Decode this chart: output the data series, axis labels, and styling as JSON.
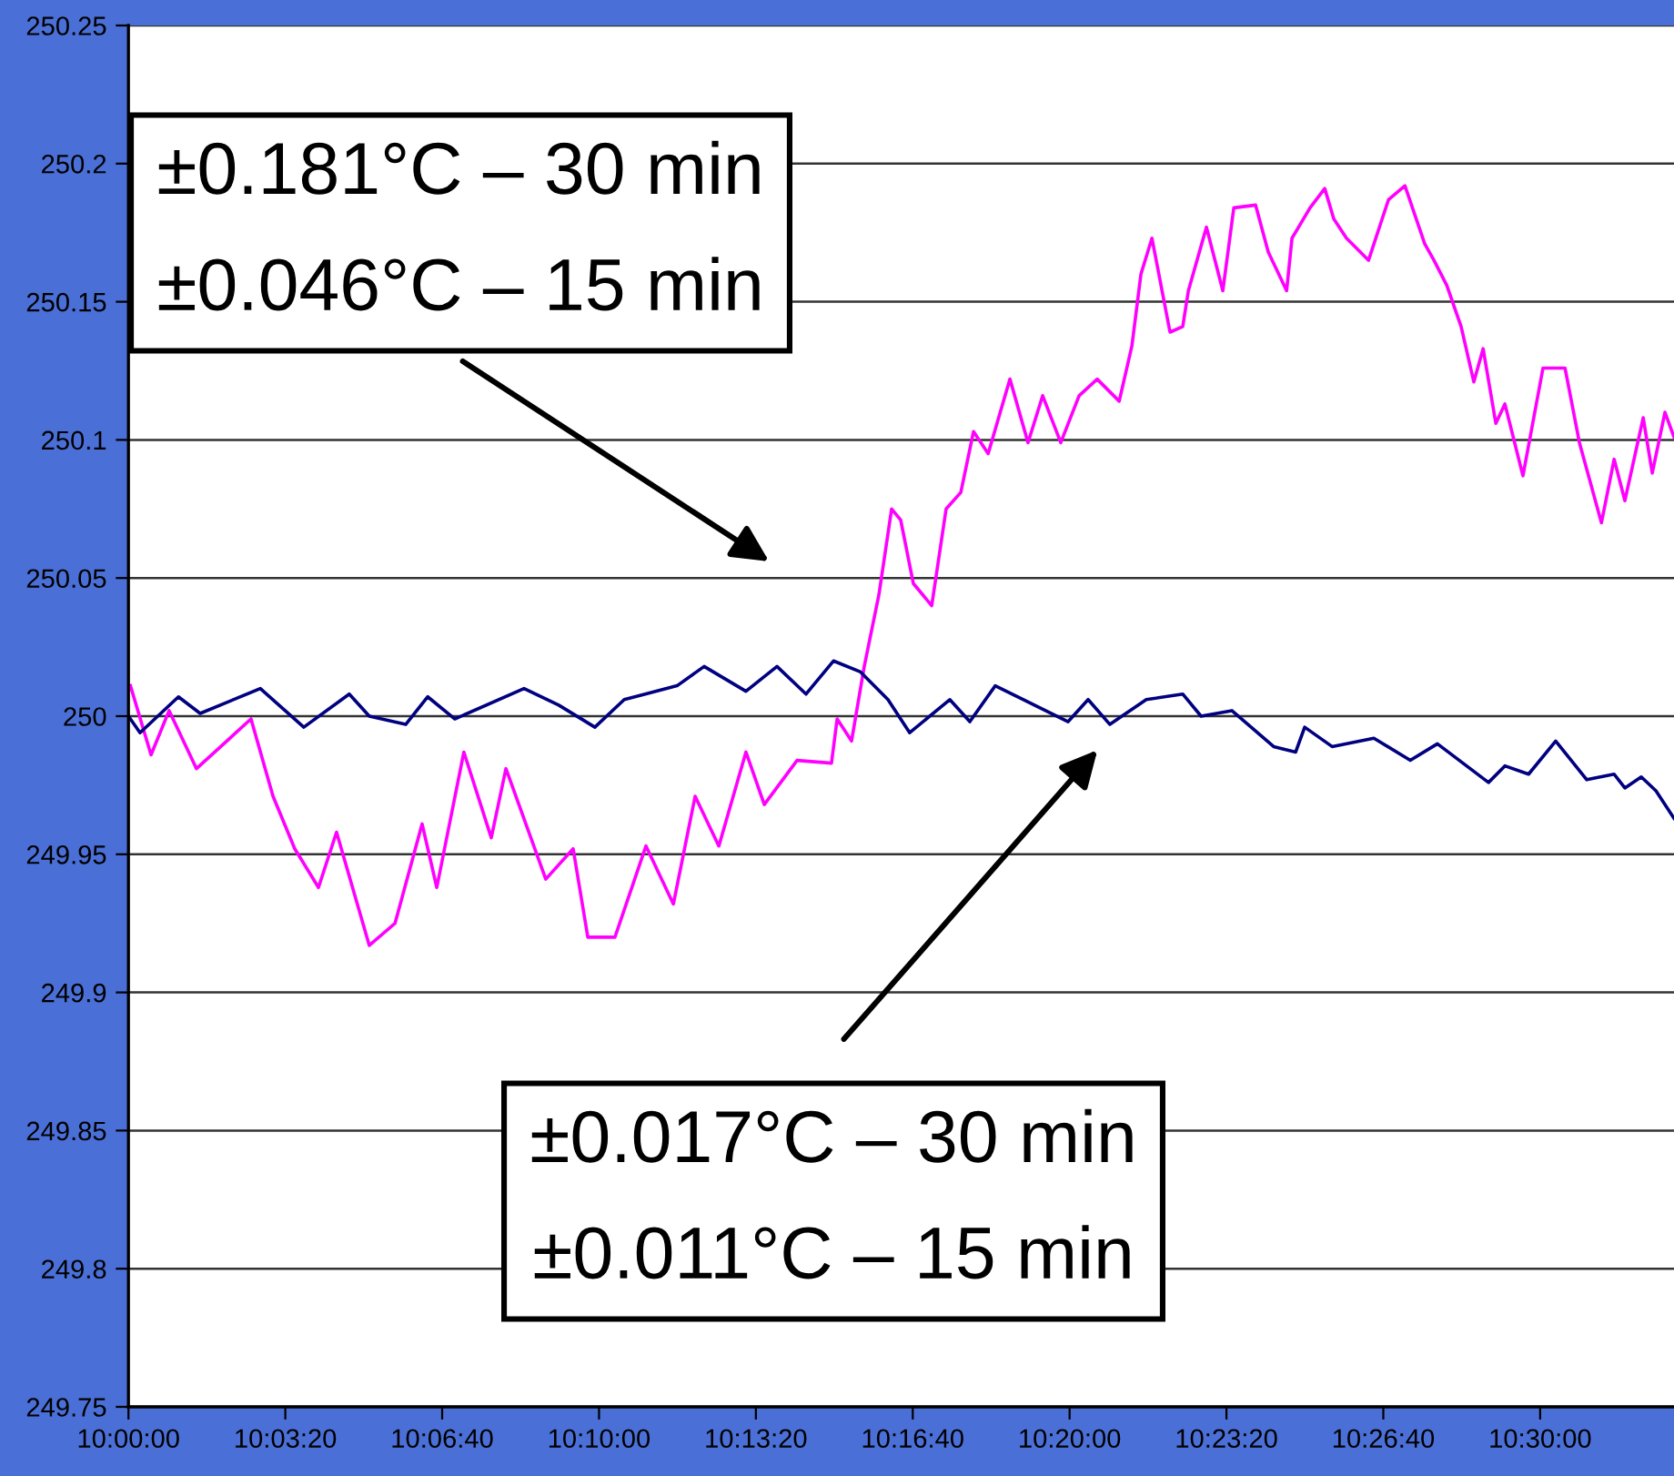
{
  "chart_data": {
    "type": "line",
    "xlim": [
      10.0,
      10.5474
    ],
    "ylim": [
      249.75,
      250.25
    ],
    "xticks": [
      {
        "value": 10.0,
        "label": "10:00:00"
      },
      {
        "value": 10.055556,
        "label": "10:03:20"
      },
      {
        "value": 10.111111,
        "label": "10:06:40"
      },
      {
        "value": 10.166667,
        "label": "10:10:00"
      },
      {
        "value": 10.222222,
        "label": "10:13:20"
      },
      {
        "value": 10.277778,
        "label": "10:16:40"
      },
      {
        "value": 10.333333,
        "label": "10:20:00"
      },
      {
        "value": 10.388889,
        "label": "10:23:20"
      },
      {
        "value": 10.444444,
        "label": "10:26:40"
      },
      {
        "value": 10.5,
        "label": "10:30:00"
      }
    ],
    "yticks": [
      249.75,
      249.8,
      249.85,
      249.9,
      249.95,
      250,
      250.05,
      250.1,
      250.15,
      250.2,
      250.25
    ],
    "grid": "y",
    "marker": "none",
    "line_style": "solid",
    "series": [
      {
        "color": "#ff00ff",
        "x": [
          10.0007,
          10.008,
          10.0144,
          10.0241,
          10.0434,
          10.0512,
          10.0589,
          10.0673,
          10.0737,
          10.0853,
          10.0944,
          10.104,
          10.1092,
          10.1188,
          10.1285,
          10.1337,
          10.1478,
          10.1575,
          10.1627,
          10.1723,
          10.1833,
          10.193,
          10.2007,
          10.2091,
          10.2187,
          10.2252,
          10.2368,
          10.249,
          10.251,
          10.2561,
          10.2606,
          10.2658,
          10.2703,
          10.2735,
          10.278,
          10.2845,
          10.2896,
          10.2948,
          10.2993,
          10.3045,
          10.3122,
          10.3186,
          10.3238,
          10.3302,
          10.3367,
          10.3431,
          10.3509,
          10.3554,
          10.3586,
          10.3625,
          10.3689,
          10.3734,
          10.3754,
          10.3818,
          10.3876,
          10.3915,
          10.3992,
          10.4037,
          10.4102,
          10.4121,
          10.4185,
          10.4237,
          10.4269,
          10.4314,
          10.4392,
          10.4463,
          10.4521,
          10.4591,
          10.4624,
          10.4669,
          10.472,
          10.4765,
          10.4798,
          10.4843,
          10.4875,
          10.4939,
          10.501,
          10.5088,
          10.5139,
          10.5217,
          10.5262,
          10.53,
          10.5365,
          10.5397,
          10.5442,
          10.5474
        ],
        "values": [
          250.011,
          249.986,
          250.002,
          249.981,
          249.999,
          249.971,
          249.952,
          249.938,
          249.958,
          249.917,
          249.925,
          249.961,
          249.938,
          249.987,
          249.956,
          249.981,
          249.941,
          249.952,
          249.92,
          249.92,
          249.953,
          249.932,
          249.971,
          249.953,
          249.987,
          249.968,
          249.984,
          249.983,
          249.999,
          249.991,
          250.018,
          250.044,
          250.075,
          250.071,
          250.048,
          250.04,
          250.075,
          250.081,
          250.103,
          250.095,
          250.122,
          250.099,
          250.116,
          250.099,
          250.116,
          250.122,
          250.114,
          250.134,
          250.16,
          250.173,
          250.139,
          250.141,
          250.154,
          250.177,
          250.154,
          250.184,
          250.185,
          250.168,
          250.154,
          250.173,
          250.184,
          250.191,
          250.18,
          250.173,
          250.165,
          250.187,
          250.192,
          250.171,
          250.165,
          250.156,
          250.141,
          250.121,
          250.133,
          250.106,
          250.113,
          250.087,
          250.126,
          250.126,
          250.099,
          250.07,
          250.093,
          250.078,
          250.108,
          250.088,
          250.11,
          250.101
        ]
      },
      {
        "color": "#000080",
        "x": [
          10.0,
          10.0041,
          10.0177,
          10.0254,
          10.0467,
          10.0621,
          10.0782,
          10.0853,
          10.0982,
          10.106,
          10.1156,
          10.1401,
          10.1524,
          10.1652,
          10.1756,
          10.1943,
          10.2039,
          10.2187,
          10.2297,
          10.24,
          10.2497,
          10.2593,
          10.269,
          10.2767,
          10.2909,
          10.298,
          10.307,
          10.3328,
          10.3399,
          10.3476,
          10.3605,
          10.3734,
          10.3799,
          10.3908,
          10.4056,
          10.4134,
          10.4166,
          10.4263,
          10.4411,
          10.454,
          10.4636,
          10.4817,
          10.4875,
          10.4959,
          10.5055,
          10.5165,
          10.5262,
          10.53,
          10.5358,
          10.541,
          10.5474
        ],
        "values": [
          250.0,
          249.994,
          250.007,
          250.001,
          250.01,
          249.996,
          250.008,
          250.0,
          249.997,
          250.007,
          249.999,
          250.01,
          250.004,
          249.996,
          250.006,
          250.011,
          250.018,
          250.009,
          250.018,
          250.008,
          250.02,
          250.016,
          250.006,
          249.994,
          250.006,
          249.998,
          250.011,
          249.998,
          250.006,
          249.997,
          250.006,
          250.008,
          250.0,
          250.002,
          249.989,
          249.987,
          249.996,
          249.989,
          249.992,
          249.984,
          249.99,
          249.976,
          249.982,
          249.979,
          249.991,
          249.977,
          249.979,
          249.974,
          249.978,
          249.973,
          249.963
        ]
      }
    ],
    "annotations": [
      "±0.181°C – 30 min\n±0.046°C – 15 min",
      "±0.017°C – 30 min\n±0.011°C – 15 min"
    ]
  }
}
